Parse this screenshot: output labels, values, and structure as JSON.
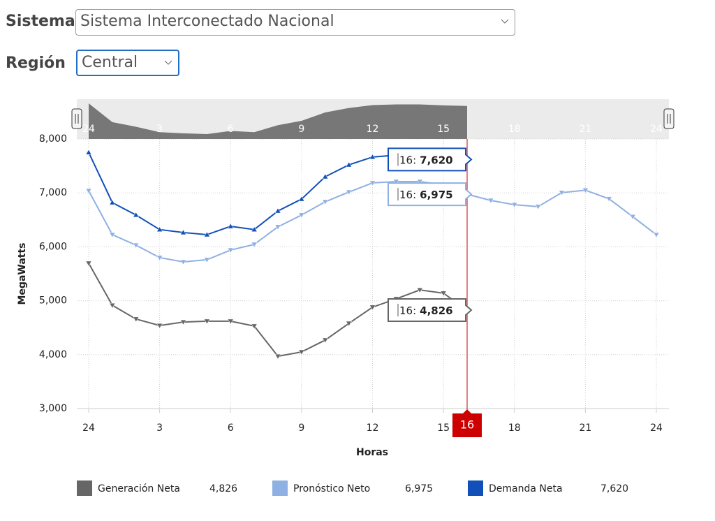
{
  "controls": {
    "sistema": {
      "label": "Sistema",
      "value": "Sistema Interconectado Nacional"
    },
    "region": {
      "label": "Región",
      "value": "Central"
    }
  },
  "chart_data": {
    "type": "line",
    "x": [
      0,
      1,
      2,
      3,
      4,
      5,
      6,
      7,
      8,
      9,
      10,
      11,
      12,
      13,
      14,
      15,
      16,
      17,
      18,
      19,
      20,
      21,
      22,
      23,
      24
    ],
    "xlim": [
      0,
      24
    ],
    "xticks": [
      {
        "value": 0,
        "label": "24"
      },
      3,
      6,
      9,
      12,
      15,
      18,
      21,
      {
        "value": 24,
        "label": "24"
      }
    ],
    "ylim": [
      3000,
      8000
    ],
    "yticks": [
      {
        "value": 3000,
        "label": "3,000"
      },
      {
        "value": 4000,
        "label": "4,000"
      },
      {
        "value": 5000,
        "label": "5,000"
      },
      {
        "value": 6000,
        "label": "6,000"
      },
      {
        "value": 7000,
        "label": "7,000"
      },
      {
        "value": 8000,
        "label": "8,000"
      }
    ],
    "grid": true,
    "xlabel": "Horas",
    "ylabel": "MegaWatts",
    "cursor": {
      "x": 16,
      "label": "16"
    },
    "tooltip_prefix": "16:",
    "series": [
      {
        "name": "Generación Neta",
        "color": "#666666",
        "marker": "triangle-down",
        "current_label": "4,826",
        "values": [
          5695,
          4915,
          4660,
          4540,
          4605,
          4620,
          4620,
          4530,
          3970,
          4050,
          4270,
          4580,
          4880,
          5035,
          5200,
          5140,
          4826,
          null,
          null,
          null,
          null,
          null,
          null,
          null,
          null
        ]
      },
      {
        "name": "Pronóstico Neto",
        "color": "#8fb0e2",
        "marker": "triangle-down",
        "current_label": "6,975",
        "values": [
          7040,
          6225,
          6030,
          5800,
          5720,
          5760,
          5940,
          6045,
          6370,
          6590,
          6835,
          7015,
          7185,
          7210,
          7210,
          7150,
          6975,
          6860,
          6780,
          6745,
          7005,
          7050,
          6890,
          6560,
          6225
        ]
      },
      {
        "name": "Demanda Neta",
        "color": "#1150b8",
        "marker": "triangle-up",
        "current_label": "7,620",
        "values": [
          7750,
          6820,
          6590,
          6320,
          6265,
          6225,
          6380,
          6320,
          6665,
          6885,
          7300,
          7520,
          7665,
          7700,
          7700,
          7650,
          7620,
          null,
          null,
          null,
          null,
          null,
          null,
          null,
          null
        ]
      }
    ]
  }
}
